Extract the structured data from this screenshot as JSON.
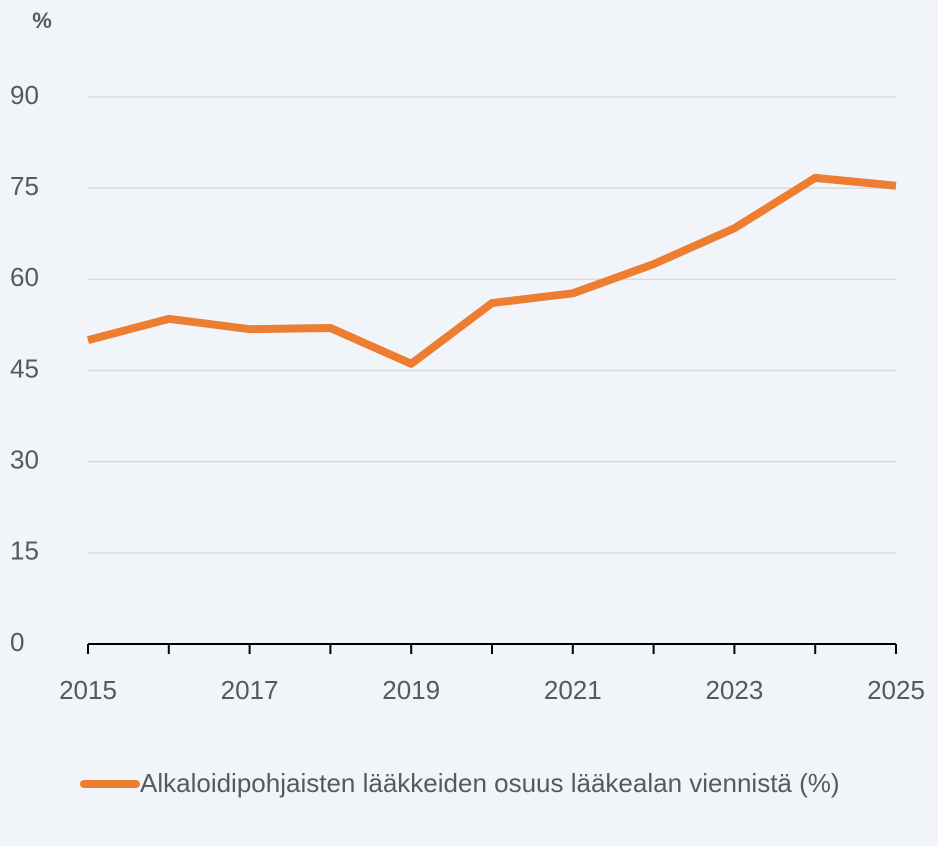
{
  "chart_data": {
    "type": "line",
    "y_label": "%",
    "x": [
      2015,
      2016,
      2017,
      2018,
      2019,
      2020,
      2021,
      2022,
      2023,
      2024,
      2025
    ],
    "series": [
      {
        "name": "Alkaloidipohjaisten lääkkeiden osuus lääkealan viennistä (%)",
        "color": "#ed7d31",
        "values": [
          50.0,
          53.5,
          51.8,
          52.0,
          46.1,
          56.1,
          57.7,
          62.5,
          68.4,
          76.7,
          75.4
        ]
      }
    ],
    "xlim": [
      2015,
      2025
    ],
    "xticks": [
      2015,
      2017,
      2019,
      2021,
      2023,
      2025
    ],
    "ylim": [
      0,
      90
    ],
    "yticks": [
      0,
      15,
      30,
      45,
      60,
      75,
      90
    ],
    "grid": true,
    "legend": "bottom"
  }
}
